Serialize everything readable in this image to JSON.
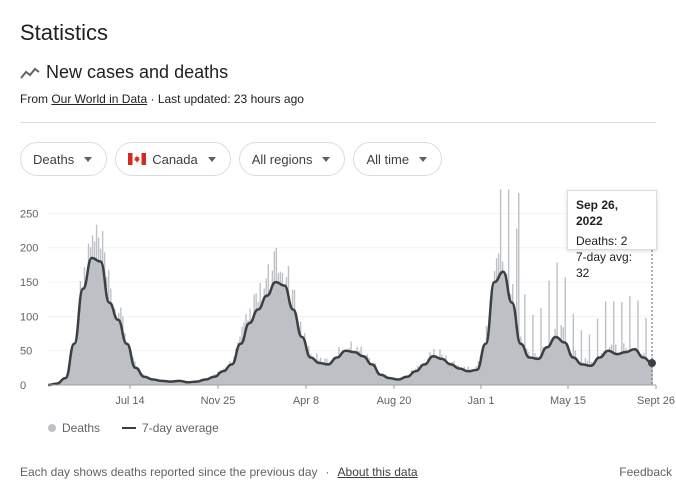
{
  "page": {
    "title": "Statistics",
    "subtitle": "New cases and deaths",
    "source_prefix": "From ",
    "source_link": "Our World in Data",
    "updated": " · Last updated: 23 hours ago"
  },
  "filters": [
    {
      "label": "Deaths"
    },
    {
      "label": "Canada",
      "flag": "canada-flag"
    },
    {
      "label": "All regions"
    },
    {
      "label": "All time"
    }
  ],
  "tooltip": {
    "date": "Sep 26, 2022",
    "deaths": "Deaths: 2",
    "avg": "7-day avg: 32"
  },
  "legend": {
    "deaths": "Deaths",
    "avg": "7-day average"
  },
  "footer": {
    "note": "Each day shows deaths reported since the previous day",
    "sep": "·",
    "about": "About this data",
    "feedback": "Feedback"
  },
  "colors": {
    "bars": "#bdc1c6",
    "area": "#bdc1c6",
    "line": "#3c4043",
    "grid": "#f1f3f4"
  },
  "chart_data": {
    "type": "area",
    "title": "",
    "y_ticks": [
      0,
      50,
      100,
      150,
      200,
      250
    ],
    "ylim": [
      0,
      260
    ],
    "x_tick_labels": [
      "Jul 14",
      "Nov 25",
      "Apr 8",
      "Aug 20",
      "Jan 1",
      "May 15",
      "Sept 26"
    ],
    "series": [
      {
        "name": "7-day average",
        "values": [
          0,
          2,
          10,
          60,
          140,
          185,
          180,
          120,
          95,
          60,
          25,
          12,
          8,
          6,
          5,
          6,
          4,
          5,
          8,
          12,
          20,
          30,
          60,
          90,
          110,
          130,
          150,
          145,
          110,
          70,
          40,
          32,
          30,
          40,
          50,
          48,
          42,
          30,
          15,
          10,
          8,
          12,
          20,
          30,
          42,
          38,
          30,
          24,
          20,
          22,
          60,
          150,
          165,
          120,
          60,
          40,
          38,
          55,
          70,
          62,
          40,
          30,
          28,
          40,
          50,
          45,
          48,
          52,
          40,
          32
        ]
      }
    ],
    "tooltip_point": {
      "x": "Sep 26, 2022",
      "deaths": 2,
      "avg": 32
    }
  }
}
